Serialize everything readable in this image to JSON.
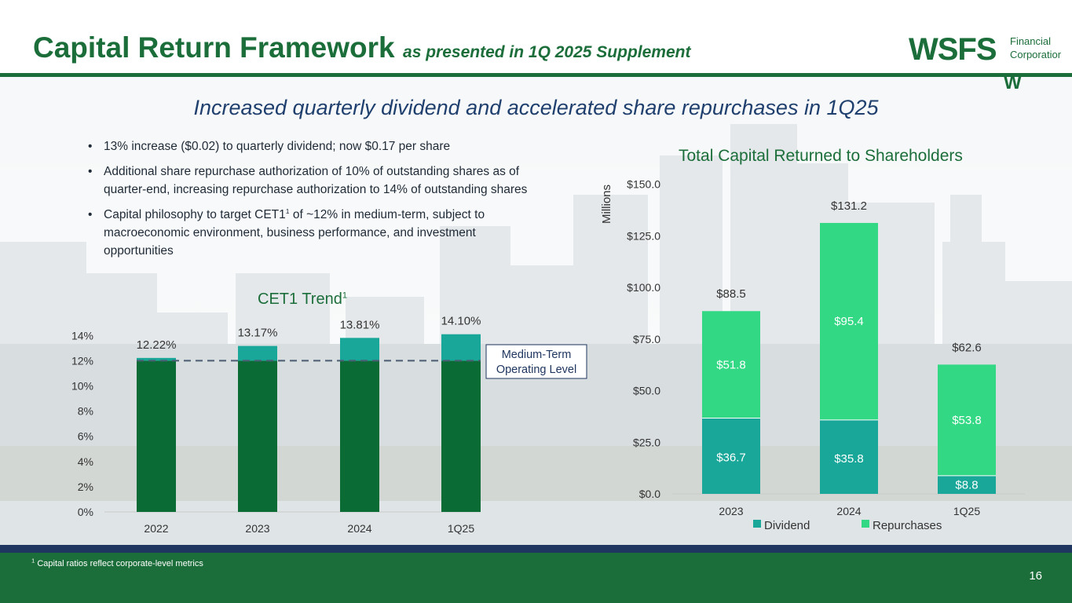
{
  "header": {
    "title": "Capital Return Framework",
    "subtitle": "as presented in 1Q 2025 Supplement",
    "logo_big": "WSFS",
    "logo_small_1": "Financial",
    "logo_small_2": "Corporation",
    "logo_mark": "W"
  },
  "headline": "Increased quarterly dividend and accelerated share repurchases in 1Q25",
  "bullets": [
    {
      "dot": "•",
      "before": "13% increase ($0.02) to quarterly dividend; now $0.17 per share",
      "sup": "",
      "after": ""
    },
    {
      "dot": "•",
      "before": "Additional share repurchase authorization of 10% of outstanding shares as of quarter-end, increasing repurchase authorization to 14% of outstanding shares",
      "sup": "",
      "after": ""
    },
    {
      "dot": "•",
      "before": "Capital philosophy to target CET1",
      "sup": "1",
      "after": " of ~12% in medium-term, subject to macroeconomic environment, business performance, and investment opportunities"
    }
  ],
  "cet1": {
    "title": "CET1 Trend",
    "title_sup": "1",
    "reference_label_1": "Medium-Term",
    "reference_label_2": "Operating Level"
  },
  "capital": {
    "title": "Total Capital Returned to Shareholders",
    "axis_unit": "Millions",
    "legend_dividend": "Dividend",
    "legend_repurchases": "Repurchases"
  },
  "colors": {
    "brand_green": "#1b6e3a",
    "cet1_base": "#0a6b35",
    "cet1_top": "#19a79a",
    "dividend": "#19a79a",
    "repurchases": "#33d884",
    "navy": "#1f3660"
  },
  "chart_data": [
    {
      "type": "bar",
      "title": "CET1 Trend",
      "categories": [
        "2022",
        "2023",
        "2024",
        "1Q25"
      ],
      "values": [
        12.22,
        13.17,
        13.81,
        14.1
      ],
      "value_labels": [
        "12.22%",
        "13.17%",
        "13.81%",
        "14.10%"
      ],
      "yticks": [
        "0%",
        "2%",
        "4%",
        "6%",
        "8%",
        "10%",
        "12%",
        "14%"
      ],
      "ylim": [
        0,
        14
      ],
      "reference_line": 12
    },
    {
      "type": "bar",
      "stacked": true,
      "title": "Total Capital Returned to Shareholders",
      "ylabel": "Millions",
      "categories": [
        "2023",
        "2024",
        "1Q25"
      ],
      "series": [
        {
          "name": "Dividend",
          "values": [
            36.7,
            35.8,
            8.8
          ],
          "labels": [
            "$36.7",
            "$35.8",
            "$8.8"
          ]
        },
        {
          "name": "Repurchases",
          "values": [
            51.8,
            95.4,
            53.8
          ],
          "labels": [
            "$51.8",
            "$95.4",
            "$53.8"
          ]
        }
      ],
      "totals": [
        88.5,
        131.2,
        62.6
      ],
      "total_labels": [
        "$88.5",
        "$131.2",
        "$62.6"
      ],
      "yticks": [
        "$0.0",
        "$25.0",
        "$50.0",
        "$75.0",
        "$100.0",
        "$125.0",
        "$150.0"
      ],
      "ylim": [
        0,
        150
      ],
      "legend_position": "bottom"
    }
  ],
  "footer": {
    "footnote_sup": "1",
    "footnote": " Capital ratios reflect corporate-level metrics",
    "page_number": "16"
  }
}
